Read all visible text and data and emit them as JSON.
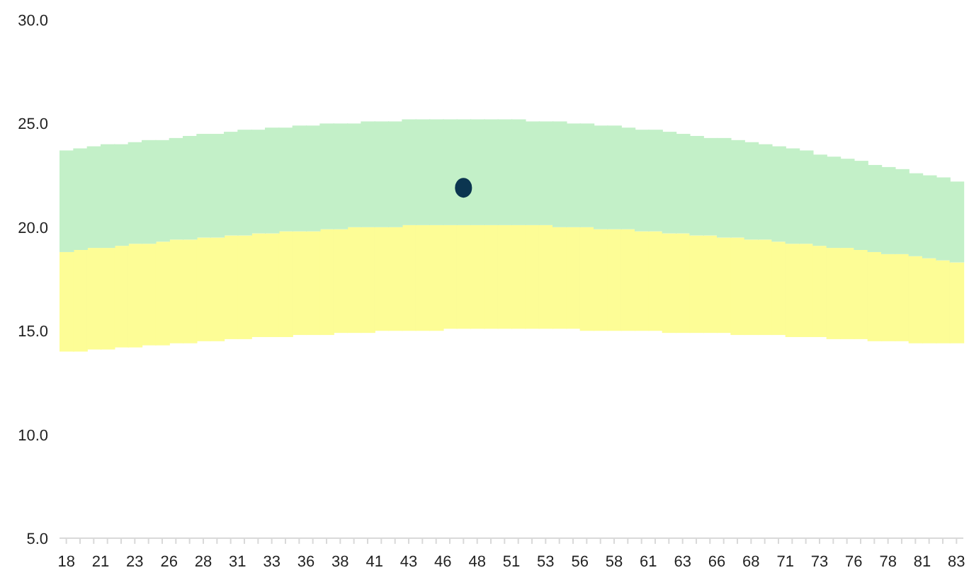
{
  "chart_data": {
    "type": "bar",
    "x": [
      18,
      19,
      20,
      21,
      22,
      23,
      24,
      25,
      26,
      27,
      28,
      29,
      30,
      31,
      32,
      33,
      34,
      35,
      36,
      37,
      38,
      39,
      40,
      41,
      42,
      43,
      44,
      45,
      46,
      47,
      48,
      49,
      50,
      51,
      52,
      53,
      54,
      55,
      56,
      57,
      58,
      59,
      60,
      61,
      62,
      63,
      64,
      65,
      66,
      67,
      68,
      69,
      70,
      71,
      72,
      73,
      74,
      75,
      76,
      77,
      78,
      79,
      80,
      81,
      82,
      83
    ],
    "series": [
      {
        "color": "#fdfd96",
        "base": [
          14.0,
          14.0,
          14.1,
          14.1,
          14.2,
          14.2,
          14.3,
          14.3,
          14.4,
          14.4,
          14.5,
          14.5,
          14.6,
          14.6,
          14.7,
          14.7,
          14.7,
          14.8,
          14.8,
          14.8,
          14.9,
          14.9,
          14.9,
          15.0,
          15.0,
          15.0,
          15.0,
          15.0,
          15.1,
          15.1,
          15.1,
          15.1,
          15.1,
          15.1,
          15.1,
          15.1,
          15.1,
          15.1,
          15.0,
          15.0,
          15.0,
          15.0,
          15.0,
          15.0,
          14.9,
          14.9,
          14.9,
          14.9,
          14.9,
          14.8,
          14.8,
          14.8,
          14.8,
          14.7,
          14.7,
          14.7,
          14.6,
          14.6,
          14.6,
          14.5,
          14.5,
          14.5,
          14.4,
          14.4,
          14.4,
          14.4
        ],
        "values": [
          4.8,
          4.9,
          4.9,
          4.9,
          4.9,
          5.0,
          4.9,
          5.0,
          5.0,
          5.0,
          5.0,
          5.0,
          5.0,
          5.0,
          5.0,
          5.0,
          5.1,
          5.0,
          5.0,
          5.1,
          5.0,
          5.1,
          5.1,
          5.0,
          5.0,
          5.1,
          5.1,
          5.1,
          5.0,
          5.0,
          5.0,
          5.0,
          5.0,
          5.0,
          5.0,
          5.0,
          4.9,
          4.9,
          5.0,
          4.9,
          4.9,
          4.9,
          4.8,
          4.8,
          4.8,
          4.8,
          4.7,
          4.7,
          4.6,
          4.7,
          4.6,
          4.6,
          4.5,
          4.5,
          4.5,
          4.4,
          4.4,
          4.4,
          4.3,
          4.3,
          4.2,
          4.2,
          4.2,
          4.1,
          4.0,
          3.9
        ]
      },
      {
        "color": "#c3f0c8",
        "base": [
          18.8,
          18.9,
          19.0,
          19.0,
          19.1,
          19.2,
          19.2,
          19.3,
          19.4,
          19.4,
          19.5,
          19.5,
          19.6,
          19.6,
          19.7,
          19.7,
          19.8,
          19.8,
          19.8,
          19.9,
          19.9,
          20.0,
          20.0,
          20.0,
          20.0,
          20.1,
          20.1,
          20.1,
          20.1,
          20.1,
          20.1,
          20.1,
          20.1,
          20.1,
          20.1,
          20.1,
          20.0,
          20.0,
          20.0,
          19.9,
          19.9,
          19.9,
          19.8,
          19.8,
          19.7,
          19.7,
          19.6,
          19.6,
          19.5,
          19.5,
          19.4,
          19.4,
          19.3,
          19.2,
          19.2,
          19.1,
          19.0,
          19.0,
          18.9,
          18.8,
          18.7,
          18.7,
          18.6,
          18.5,
          18.4,
          18.3
        ],
        "values": [
          4.9,
          4.9,
          4.9,
          5.0,
          4.9,
          4.9,
          5.0,
          4.9,
          4.9,
          5.0,
          5.0,
          5.0,
          5.0,
          5.1,
          5.0,
          5.1,
          5.0,
          5.1,
          5.1,
          5.1,
          5.1,
          5.0,
          5.1,
          5.1,
          5.1,
          5.1,
          5.1,
          5.1,
          5.1,
          5.1,
          5.1,
          5.1,
          5.1,
          5.1,
          5.0,
          5.0,
          5.1,
          5.0,
          5.0,
          5.0,
          5.0,
          4.9,
          4.9,
          4.9,
          4.9,
          4.8,
          4.8,
          4.7,
          4.8,
          4.7,
          4.7,
          4.6,
          4.6,
          4.6,
          4.5,
          4.4,
          4.4,
          4.3,
          4.3,
          4.2,
          4.2,
          4.1,
          4.0,
          4.0,
          4.0,
          3.9
        ]
      },
      {
        "type": "scatter",
        "color": "#0b3550",
        "x": [
          47
        ],
        "values": [
          21.9
        ],
        "marker": "circle"
      }
    ],
    "xlim": [
      17.5,
      83.5
    ],
    "xticks": [
      18,
      {
        "value": 20.5,
        "label": "21"
      },
      23,
      {
        "value": 25.5,
        "label": "26"
      },
      28,
      {
        "value": 30.5,
        "label": "31"
      },
      33,
      {
        "value": 35.5,
        "label": "36"
      },
      38,
      {
        "value": 40.5,
        "label": "41"
      },
      43,
      {
        "value": 45.5,
        "label": "46"
      },
      48,
      {
        "value": 50.5,
        "label": "51"
      },
      53,
      {
        "value": 55.5,
        "label": "56"
      },
      58,
      {
        "value": 60.5,
        "label": "61"
      },
      63,
      {
        "value": 65.5,
        "label": "66"
      },
      68,
      {
        "value": 70.5,
        "label": "71"
      },
      73,
      {
        "value": 75.5,
        "label": "76"
      },
      78,
      {
        "value": 80.5,
        "label": "81"
      },
      83
    ],
    "ylim": [
      5,
      30
    ],
    "yticks": [
      {
        "value": 5,
        "label": "5.0"
      },
      {
        "value": 10,
        "label": "10.0"
      },
      {
        "value": 15,
        "label": "15.0"
      },
      {
        "value": 20,
        "label": "20.0"
      },
      {
        "value": 25,
        "label": "25.0"
      },
      {
        "value": 30,
        "label": "30.0"
      }
    ]
  }
}
